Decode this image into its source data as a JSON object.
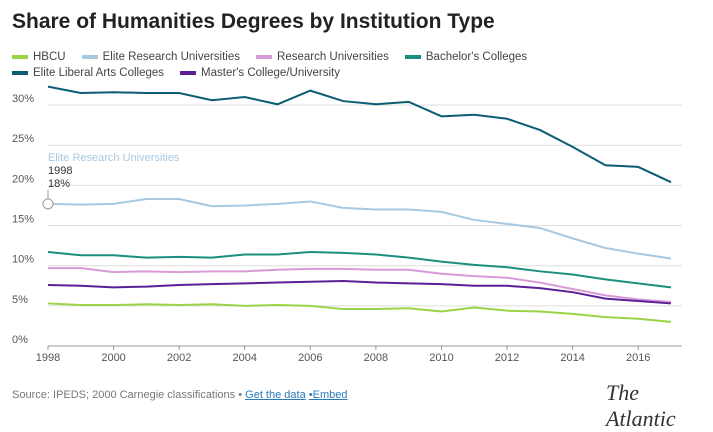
{
  "chart_data": {
    "type": "line",
    "title": "Share of Humanities Degrees by Institution Type",
    "x": [
      1998,
      1999,
      2000,
      2001,
      2002,
      2003,
      2004,
      2005,
      2006,
      2007,
      2008,
      2009,
      2010,
      2011,
      2012,
      2013,
      2014,
      2015,
      2016,
      2017
    ],
    "xlim": [
      1998,
      2017
    ],
    "xticks": [
      1998,
      2000,
      2002,
      2004,
      2006,
      2008,
      2010,
      2012,
      2014,
      2016
    ],
    "ylim": [
      0,
      32.5
    ],
    "yticks": [
      {
        "value": 0,
        "label": "0%"
      },
      {
        "value": 5,
        "label": "5%"
      },
      {
        "value": 10,
        "label": "10%"
      },
      {
        "value": 15,
        "label": "15%"
      },
      {
        "value": 20,
        "label": "20%"
      },
      {
        "value": 25,
        "label": "25%"
      },
      {
        "value": 30,
        "label": "30%"
      }
    ],
    "grid": true,
    "series": [
      {
        "name": "HBCU",
        "color": "#9ad345",
        "values": [
          5.3,
          5.1,
          5.1,
          5.2,
          5.1,
          5.2,
          5.0,
          5.1,
          5.0,
          4.6,
          4.6,
          4.7,
          4.3,
          4.8,
          4.4,
          4.3,
          4.0,
          3.6,
          3.4,
          3.0
        ]
      },
      {
        "name": "Elite Research Universities",
        "color": "#a6c8e0",
        "values": [
          17.7,
          17.6,
          17.7,
          18.3,
          18.3,
          17.4,
          17.5,
          17.7,
          18.0,
          17.2,
          17.0,
          17.0,
          16.7,
          15.7,
          15.2,
          14.7,
          13.4,
          12.2,
          11.5,
          10.9
        ]
      },
      {
        "name": "Research Universities",
        "color": "#d89ad9",
        "values": [
          9.7,
          9.7,
          9.2,
          9.3,
          9.2,
          9.3,
          9.3,
          9.5,
          9.6,
          9.6,
          9.5,
          9.5,
          9.0,
          8.7,
          8.5,
          7.9,
          7.1,
          6.3,
          5.8,
          5.5
        ]
      },
      {
        "name": "Bachelor's Colleges",
        "color": "#1a8f80",
        "values": [
          11.7,
          11.3,
          11.3,
          11.0,
          11.1,
          11.0,
          11.4,
          11.4,
          11.7,
          11.6,
          11.4,
          11.0,
          10.5,
          10.1,
          9.8,
          9.3,
          8.9,
          8.3,
          7.8,
          7.3
        ]
      },
      {
        "name": "Elite Liberal Arts Colleges",
        "color": "#0d5c75",
        "values": [
          32.3,
          31.5,
          31.6,
          31.5,
          31.5,
          30.6,
          31.0,
          30.1,
          31.8,
          30.5,
          30.1,
          30.4,
          28.6,
          28.8,
          28.3,
          26.9,
          24.8,
          22.5,
          22.3,
          20.4
        ]
      },
      {
        "name": "Master's College/University",
        "color": "#5b1f99",
        "values": [
          7.6,
          7.5,
          7.3,
          7.4,
          7.6,
          7.7,
          7.8,
          7.9,
          8.0,
          8.1,
          7.9,
          7.8,
          7.7,
          7.5,
          7.5,
          7.2,
          6.7,
          5.9,
          5.6,
          5.3
        ]
      }
    ],
    "annotation": {
      "title": "Elite Research Universities",
      "x": 1998,
      "value_label": "18%"
    }
  },
  "footer": {
    "source": "Source: IPEDS; 2000 Carnegie classifications •",
    "data_link": "Get the data",
    "embed_link": "•Embed",
    "logo": "The Atlantic"
  }
}
